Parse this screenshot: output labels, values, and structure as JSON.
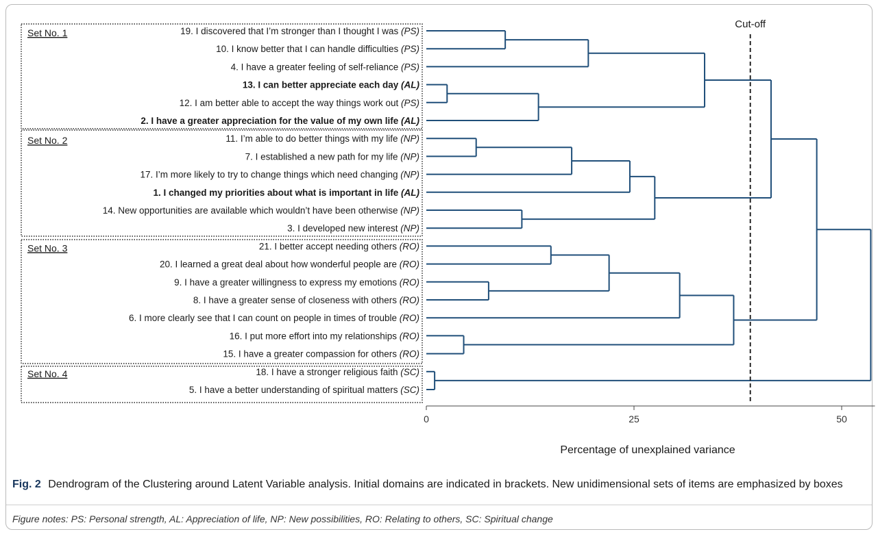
{
  "chart_data": {
    "type": "dendrogram",
    "xlabel": "Percentage of unexplained variance",
    "xlim": [
      0,
      54
    ],
    "xticks": [
      0,
      25,
      50
    ],
    "cutoff": {
      "label": "Cut-off",
      "value": 39
    },
    "colors": {
      "tree": "#1f4e79",
      "text": "#1a1a1a",
      "box": "#222222",
      "caption_label": "#17365d"
    },
    "sets": [
      {
        "label": "Set No. 1",
        "leaves": [
          0,
          1,
          2,
          3,
          4,
          5
        ]
      },
      {
        "label": "Set No. 2",
        "leaves": [
          6,
          7,
          8,
          9,
          10,
          11
        ]
      },
      {
        "label": "Set No. 3",
        "leaves": [
          12,
          13,
          14,
          15,
          16,
          17,
          18
        ]
      },
      {
        "label": "Set No. 4",
        "leaves": [
          19,
          20
        ]
      }
    ],
    "leaves": [
      {
        "text": "19. I discovered that I’m stronger than I thought I was",
        "domain": "(PS)",
        "bold": false
      },
      {
        "text": "10. I know better that I can handle difficulties",
        "domain": "(PS)",
        "bold": false
      },
      {
        "text": "4. I have a greater feeling of self-reliance",
        "domain": "(PS)",
        "bold": false
      },
      {
        "text": "13. I can better appreciate each day",
        "domain": "(AL)",
        "bold": true
      },
      {
        "text": "12. I am better able to accept the way things work out",
        "domain": "(PS)",
        "bold": false
      },
      {
        "text": "2. I have a greater appreciation for the value of my own life",
        "domain": "(AL)",
        "bold": true
      },
      {
        "text": "11. I’m able to do better things with my life",
        "domain": "(NP)",
        "bold": false
      },
      {
        "text": "7. I established a new path for my life",
        "domain": "(NP)",
        "bold": false
      },
      {
        "text": "17. I’m more likely to try to change things which need changing",
        "domain": "(NP)",
        "bold": false
      },
      {
        "text": "1. I changed my priorities about what is important in life",
        "domain": "(AL)",
        "bold": true
      },
      {
        "text": "14.  New opportunities are available which wouldn’t have been otherwise",
        "domain": "(NP)",
        "bold": false
      },
      {
        "text": "3.  I developed new interest",
        "domain": "(NP)",
        "bold": false
      },
      {
        "text": "21. I better accept needing others",
        "domain": "(RO)",
        "bold": false
      },
      {
        "text": "20. I learned a great deal about how wonderful people are",
        "domain": "(RO)",
        "bold": false
      },
      {
        "text": "9. I have a greater willingness to express my emotions",
        "domain": "(RO)",
        "bold": false
      },
      {
        "text": "8. I have a greater sense of closeness with others",
        "domain": "(RO)",
        "bold": false
      },
      {
        "text": "6. I more clearly see that I can count on people in times of trouble",
        "domain": "(RO)",
        "bold": false
      },
      {
        "text": "16. I  put more effort into my relationships",
        "domain": "(RO)",
        "bold": false
      },
      {
        "text": "15. I have a greater compassion for others",
        "domain": "(RO)",
        "bold": false
      },
      {
        "text": "18. I have a stronger religious faith",
        "domain": "(SC)",
        "bold": false
      },
      {
        "text": "5. I have a better understanding of spiritual matters",
        "domain": "(SC)",
        "bold": false
      }
    ],
    "merges": [
      {
        "a": "L3",
        "b": "L4",
        "height": 2.5
      },
      {
        "a": "L19",
        "b": "L20",
        "height": 1
      },
      {
        "a": "L17",
        "b": "L18",
        "height": 4.5
      },
      {
        "a": "L6",
        "b": "L7",
        "height": 6
      },
      {
        "a": "L14",
        "b": "L15",
        "height": 7.5
      },
      {
        "a": "L0",
        "b": "L1",
        "height": 9.5
      },
      {
        "a": "L10",
        "b": "L11",
        "height": 11.5
      },
      {
        "a": "M0",
        "b": "L5",
        "height": 13.5
      },
      {
        "a": "L12",
        "b": "L13",
        "height": 15
      },
      {
        "a": "M3",
        "b": "L8",
        "height": 17.5
      },
      {
        "a": "M5",
        "b": "L2",
        "height": 19.5
      },
      {
        "a": "M8",
        "b": "M4",
        "height": 22
      },
      {
        "a": "M9",
        "b": "L9",
        "height": 24.5
      },
      {
        "a": "M12",
        "b": "M6",
        "height": 27.5
      },
      {
        "a": "M11",
        "b": "L16",
        "height": 30.5
      },
      {
        "a": "M10",
        "b": "M7",
        "height": 33.5
      },
      {
        "a": "M14",
        "b": "M2",
        "height": 37
      },
      {
        "a": "M15",
        "b": "M13",
        "height": 41.5
      },
      {
        "a": "M17",
        "b": "M16",
        "height": 47
      },
      {
        "a": "M18",
        "b": "M1",
        "height": 53.5
      }
    ]
  },
  "caption": {
    "label": "Fig. 2",
    "text": "Dendrogram of the Clustering around Latent Variable analysis. Initial domains are indicated in brackets. New unidimensional sets of items are emphasized by boxes",
    "notes": "Figure notes: PS: Personal strength, AL: Appreciation of life, NP: New possibilities, RO: Relating to others, SC: Spiritual change"
  }
}
